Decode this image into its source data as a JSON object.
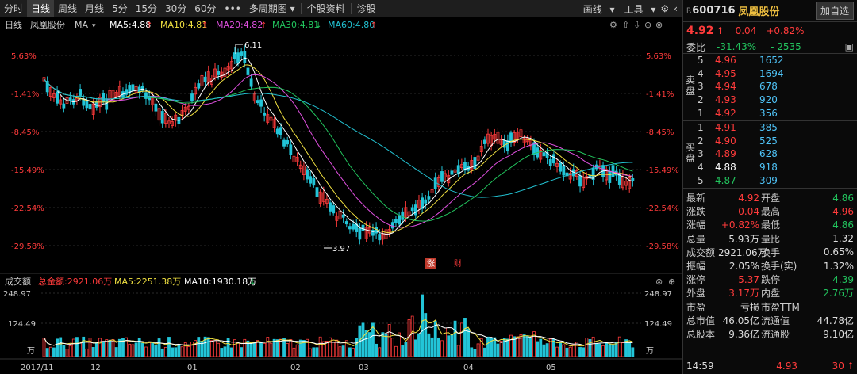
{
  "toolbar": {
    "items": [
      "分时",
      "日线",
      "周线",
      "月线",
      "5分",
      "15分",
      "30分",
      "60分"
    ],
    "more": "•••",
    "multi_period": "多周期图",
    "stock_info": "个股资料",
    "diagnose": "诊股",
    "draw_line": "画线",
    "tools": "工具"
  },
  "main_chart": {
    "legend_period": "日线",
    "legend_name": "凤凰股份",
    "legend_ma": "MA",
    "ma_labels": [
      "MA5:4.88",
      "MA10:4.81",
      "MA20:4.82",
      "MA30:4.81",
      "MA60:4.80"
    ],
    "ma_colors": [
      "#ffffff",
      "#f0e040",
      "#e050e0",
      "#22c55e",
      "#22c0d0"
    ],
    "pct_ticks": [
      "5.63%",
      "-1.41%",
      "-8.45%",
      "-15.49%",
      "-22.54%",
      "-29.58%"
    ],
    "high_label": "6.11",
    "low_label": "3.97",
    "event_labels": [
      "涨",
      "财"
    ]
  },
  "volume_chart": {
    "title": "成交额",
    "total_label": "总金额:2921.06万",
    "ma5_label": "MA5:2251.38万",
    "ma10_label": "MA10:1930.18万",
    "ticks": [
      "248.97",
      "124.49",
      "万"
    ]
  },
  "x_axis": [
    "2017/11",
    "12",
    "01",
    "02",
    "03",
    "04",
    "05"
  ],
  "right_panel": {
    "code": "600716",
    "name": "凤凰股份",
    "add_button": "加自选",
    "price": "4.92",
    "change": "0.04",
    "change_pct": "+0.82%",
    "weibi_label": "委比",
    "weibi_value": "-31.43%",
    "weicha_value": "- 2535",
    "sell_side": "卖盘",
    "buy_side": "买盘",
    "sell": [
      {
        "level": "5",
        "price": "4.96",
        "qty": "1652"
      },
      {
        "level": "4",
        "price": "4.95",
        "qty": "1694"
      },
      {
        "level": "3",
        "price": "4.94",
        "qty": "678"
      },
      {
        "level": "2",
        "price": "4.93",
        "qty": "920"
      },
      {
        "level": "1",
        "price": "4.92",
        "qty": "356"
      }
    ],
    "buy": [
      {
        "level": "1",
        "price": "4.91",
        "qty": "385",
        "color": "red"
      },
      {
        "level": "2",
        "price": "4.90",
        "qty": "525",
        "color": "red"
      },
      {
        "level": "3",
        "price": "4.89",
        "qty": "628",
        "color": "red"
      },
      {
        "level": "4",
        "price": "4.88",
        "qty": "918",
        "color": "white"
      },
      {
        "level": "5",
        "price": "4.87",
        "qty": "309",
        "color": "green"
      }
    ],
    "stats": [
      {
        "l1": "最新",
        "v1": "4.92",
        "c1": "red",
        "l2": "开盘",
        "v2": "4.86",
        "c2": "green"
      },
      {
        "l1": "涨跌",
        "v1": "0.04",
        "c1": "red",
        "l2": "最高",
        "v2": "4.96",
        "c2": "red"
      },
      {
        "l1": "涨幅",
        "v1": "+0.82%",
        "c1": "red",
        "l2": "最低",
        "v2": "4.86",
        "c2": "green"
      },
      {
        "l1": "总量",
        "v1": "5.93万",
        "c1": "white",
        "l2": "量比",
        "v2": "1.32",
        "c2": "white"
      },
      {
        "l1": "成交额",
        "v1": "2921.06万",
        "c1": "white",
        "l2": "换手",
        "v2": "0.65%",
        "c2": "white"
      },
      {
        "l1": "振幅",
        "v1": "2.05%",
        "c1": "white",
        "l2": "换手(实)",
        "v2": "1.32%",
        "c2": "white"
      },
      {
        "l1": "涨停",
        "v1": "5.37",
        "c1": "red",
        "l2": "跌停",
        "v2": "4.39",
        "c2": "green"
      },
      {
        "l1": "外盘",
        "v1": "3.17万",
        "c1": "red",
        "l2": "内盘",
        "v2": "2.76万",
        "c2": "green"
      },
      {
        "l1": "市盈",
        "v1": "亏损",
        "c1": "white",
        "l2": "市盈TTM",
        "v2": "--",
        "c2": "white"
      },
      {
        "l1": "总市值",
        "v1": "46.05亿",
        "c1": "white",
        "l2": "流通值",
        "v2": "44.78亿",
        "c2": "white"
      },
      {
        "l1": "总股本",
        "v1": "9.36亿",
        "c1": "white",
        "l2": "流通股",
        "v2": "9.10亿",
        "c2": "white"
      }
    ],
    "tick": {
      "time": "14:59",
      "price": "4.93",
      "vol": "30"
    }
  }
}
